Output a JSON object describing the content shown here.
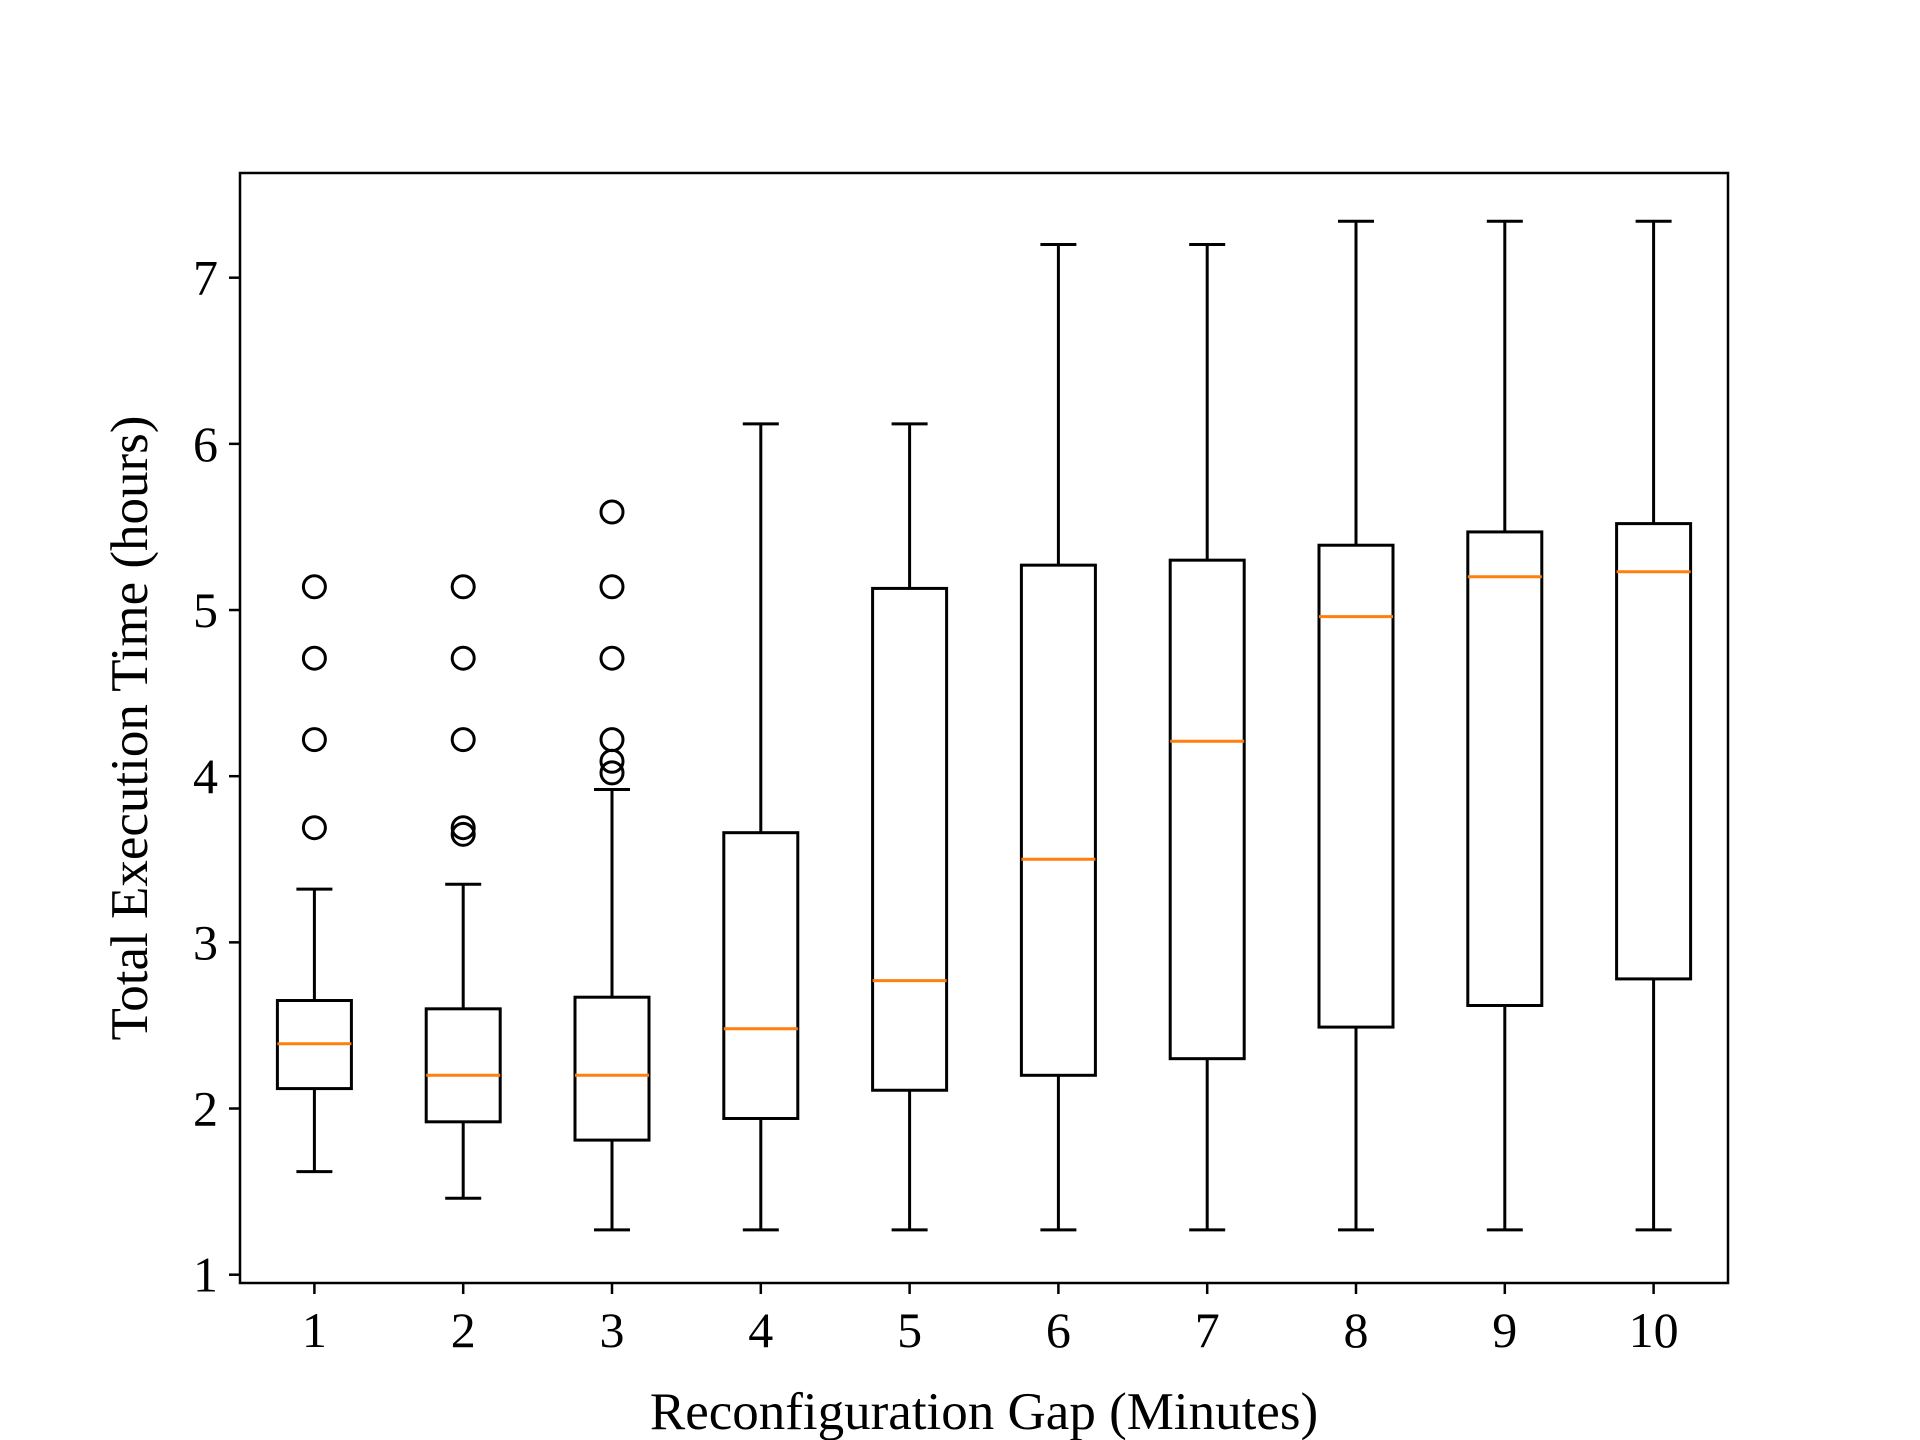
{
  "chart_data": {
    "type": "box",
    "title": "",
    "xlabel": "Reconfiguration Gap (Minutes)",
    "ylabel": "Total Execution Time (hours)",
    "ylim": [
      0.95,
      7.63
    ],
    "yticks": [
      1,
      2,
      3,
      4,
      5,
      6,
      7
    ],
    "grid": false,
    "colors": {
      "box": "#000000",
      "median": "#ff7f0e"
    },
    "categories": [
      "1",
      "2",
      "3",
      "4",
      "5",
      "6",
      "7",
      "8",
      "9",
      "10"
    ],
    "boxes": [
      {
        "whisker_low": 1.62,
        "q1": 2.12,
        "median": 2.39,
        "q3": 2.65,
        "whisker_high": 3.32,
        "outliers": [
          3.69,
          4.22,
          4.71,
          5.14
        ]
      },
      {
        "whisker_low": 1.46,
        "q1": 1.92,
        "median": 2.2,
        "q3": 2.6,
        "whisker_high": 3.35,
        "outliers": [
          3.65,
          3.69,
          4.22,
          4.71,
          5.14
        ]
      },
      {
        "whisker_low": 1.27,
        "q1": 1.81,
        "median": 2.2,
        "q3": 2.67,
        "whisker_high": 3.92,
        "outliers": [
          4.02,
          4.09,
          4.22,
          4.71,
          5.14,
          5.59
        ]
      },
      {
        "whisker_low": 1.27,
        "q1": 1.94,
        "median": 2.48,
        "q3": 3.66,
        "whisker_high": 6.12,
        "outliers": []
      },
      {
        "whisker_low": 1.27,
        "q1": 2.11,
        "median": 2.77,
        "q3": 5.13,
        "whisker_high": 6.12,
        "outliers": []
      },
      {
        "whisker_low": 1.27,
        "q1": 2.2,
        "median": 3.5,
        "q3": 5.27,
        "whisker_high": 7.2,
        "outliers": []
      },
      {
        "whisker_low": 1.27,
        "q1": 2.3,
        "median": 4.21,
        "q3": 5.3,
        "whisker_high": 7.2,
        "outliers": []
      },
      {
        "whisker_low": 1.27,
        "q1": 2.49,
        "median": 4.96,
        "q3": 5.39,
        "whisker_high": 7.34,
        "outliers": []
      },
      {
        "whisker_low": 1.27,
        "q1": 2.62,
        "median": 5.2,
        "q3": 5.47,
        "whisker_high": 7.34,
        "outliers": []
      },
      {
        "whisker_low": 1.27,
        "q1": 2.78,
        "median": 5.23,
        "q3": 5.52,
        "whisker_high": 7.34,
        "outliers": []
      }
    ]
  }
}
